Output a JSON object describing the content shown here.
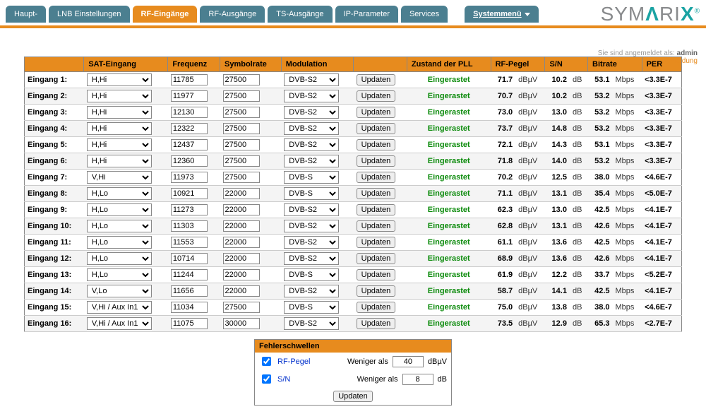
{
  "brand": {
    "name_gray": "SYM",
    "name_teal1": "Λ",
    "name_gray2": "RI",
    "name_teal2": "X",
    "reg": "®"
  },
  "nav": {
    "tabs": [
      {
        "label": "Haupt-",
        "active": false
      },
      {
        "label": "LNB Einstellungen",
        "active": false
      },
      {
        "label": "RF-Eingänge",
        "active": true
      },
      {
        "label": "RF-Ausgänge",
        "active": false
      },
      {
        "label": "TS-Ausgänge",
        "active": false
      },
      {
        "label": "IP-Parameter",
        "active": false
      },
      {
        "label": "Services",
        "active": false
      }
    ],
    "sysmenu": "Systemmenü"
  },
  "login": {
    "prefix": "Sie sind angemeldet als:",
    "user": "admin",
    "logout": "Abmeldung"
  },
  "table": {
    "headers": {
      "sat": "SAT-Eingang",
      "freq": "Frequenz",
      "sym": "Symbolrate",
      "mod": "Modulation",
      "blank": "",
      "pll": "Zustand der PLL",
      "rf": "RF-Pegel",
      "sn": "S/N",
      "bitrate": "Bitrate",
      "per": "PER"
    },
    "rowLabelPrefix": "Eingang",
    "units": {
      "rf": "dBµV",
      "sn": "dB",
      "bitrate": "Mbps"
    },
    "updateLabel": "Updaten",
    "statusLabel": "Eingerastet",
    "rows": [
      {
        "sat": "H,Hi",
        "freq": "11785",
        "sym": "27500",
        "mod": "DVB-S2",
        "rf": "71.7",
        "sn": "10.2",
        "bitrate": "53.1",
        "per": "<3.3E-7"
      },
      {
        "sat": "H,Hi",
        "freq": "11977",
        "sym": "27500",
        "mod": "DVB-S2",
        "rf": "70.7",
        "sn": "10.2",
        "bitrate": "53.2",
        "per": "<3.3E-7"
      },
      {
        "sat": "H,Hi",
        "freq": "12130",
        "sym": "27500",
        "mod": "DVB-S2",
        "rf": "73.0",
        "sn": "13.0",
        "bitrate": "53.2",
        "per": "<3.3E-7"
      },
      {
        "sat": "H,Hi",
        "freq": "12322",
        "sym": "27500",
        "mod": "DVB-S2",
        "rf": "73.7",
        "sn": "14.8",
        "bitrate": "53.2",
        "per": "<3.3E-7"
      },
      {
        "sat": "H,Hi",
        "freq": "12437",
        "sym": "27500",
        "mod": "DVB-S2",
        "rf": "72.1",
        "sn": "14.3",
        "bitrate": "53.1",
        "per": "<3.3E-7"
      },
      {
        "sat": "H,Hi",
        "freq": "12360",
        "sym": "27500",
        "mod": "DVB-S2",
        "rf": "71.8",
        "sn": "14.0",
        "bitrate": "53.2",
        "per": "<3.3E-7"
      },
      {
        "sat": "V,Hi",
        "freq": "11973",
        "sym": "27500",
        "mod": "DVB-S",
        "rf": "70.2",
        "sn": "12.5",
        "bitrate": "38.0",
        "per": "<4.6E-7"
      },
      {
        "sat": "H,Lo",
        "freq": "10921",
        "sym": "22000",
        "mod": "DVB-S",
        "rf": "71.1",
        "sn": "13.1",
        "bitrate": "35.4",
        "per": "<5.0E-7"
      },
      {
        "sat": "H,Lo",
        "freq": "11273",
        "sym": "22000",
        "mod": "DVB-S2",
        "rf": "62.3",
        "sn": "13.0",
        "bitrate": "42.5",
        "per": "<4.1E-7"
      },
      {
        "sat": "H,Lo",
        "freq": "11303",
        "sym": "22000",
        "mod": "DVB-S2",
        "rf": "62.8",
        "sn": "13.1",
        "bitrate": "42.6",
        "per": "<4.1E-7"
      },
      {
        "sat": "H,Lo",
        "freq": "11553",
        "sym": "22000",
        "mod": "DVB-S2",
        "rf": "61.1",
        "sn": "13.6",
        "bitrate": "42.5",
        "per": "<4.1E-7"
      },
      {
        "sat": "H,Lo",
        "freq": "10714",
        "sym": "22000",
        "mod": "DVB-S2",
        "rf": "68.9",
        "sn": "13.6",
        "bitrate": "42.6",
        "per": "<4.1E-7"
      },
      {
        "sat": "H,Lo",
        "freq": "11244",
        "sym": "22000",
        "mod": "DVB-S",
        "rf": "61.9",
        "sn": "12.2",
        "bitrate": "33.7",
        "per": "<5.2E-7"
      },
      {
        "sat": "V,Lo",
        "freq": "11656",
        "sym": "22000",
        "mod": "DVB-S2",
        "rf": "58.7",
        "sn": "14.1",
        "bitrate": "42.5",
        "per": "<4.1E-7"
      },
      {
        "sat": "V,Hi / Aux In1",
        "freq": "11034",
        "sym": "27500",
        "mod": "DVB-S",
        "rf": "75.0",
        "sn": "13.8",
        "bitrate": "38.0",
        "per": "<4.6E-7"
      },
      {
        "sat": "V,Hi / Aux In1",
        "freq": "11075",
        "sym": "30000",
        "mod": "DVB-S2",
        "rf": "73.5",
        "sn": "12.9",
        "bitrate": "65.3",
        "per": "<2.7E-7"
      }
    ]
  },
  "thresholds": {
    "title": "Fehlerschwellen",
    "rf_label": "RF-Pegel",
    "sn_label": "S/N",
    "less_than": "Weniger als",
    "rf_value": "40",
    "sn_value": "8",
    "rf_unit": "dBµV",
    "sn_unit": "dB",
    "update": "Updaten",
    "rf_checked": true,
    "sn_checked": true
  },
  "style": {
    "accent": "#e78b1e",
    "tab_bg": "#4b7f90",
    "status_color": "#0a8a0a"
  }
}
